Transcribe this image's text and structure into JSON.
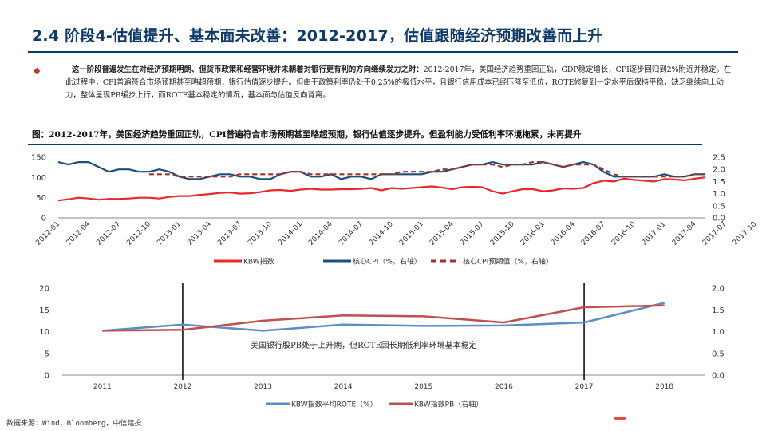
{
  "header": {
    "title": "2.4 阶段4-估值提升、基本面未改善：2012-2017，估值跟随经济预期改善而上升"
  },
  "bullet": {
    "lead": "这一阶段普遍发生在对经济预期明朗、但货币政策和经营环境并未朝着对银行更有利的方向继续发力之时：",
    "body": "2012-2017年，美国经济趋势重回正轨，GDP稳定增长，CPI逐步回归到2%附近并稳定。在此过程中，CPI普遍符合市场预期甚至略超预期，银行估值逐步提升。但由于政策利率仍处于0.25%的极低水平，且银行信用成本已经压降至低位，ROTE修复到一定水平后保持平稳，缺乏继续向上动力，整体呈现PB缓步上行，而ROTE基本稳定的情况，基本面与估值反向背离。"
  },
  "figure": {
    "caption": "图：2012-2017年，美国经济趋势重回正轨，CPI普遍符合市场预期甚至略超预期，银行估值逐步提升。但盈利能力受低利率环境拖累，未再提升"
  },
  "colors": {
    "kbw": "#e8282b",
    "cpi": "#1f4e79",
    "cpi_expect": "#a0322c",
    "rote": "#5b8dc7",
    "pb": "#c0504d"
  },
  "chart_data": [
    {
      "type": "line",
      "ylim_left": [
        0,
        150
      ],
      "yticks_left": [
        "0",
        "50",
        "100",
        "150"
      ],
      "ylim_right": [
        0,
        2.5
      ],
      "yticks_right": [
        "0.0",
        "0.5",
        "1.0",
        "1.5",
        "2.0",
        "2.5"
      ],
      "x_tick_labels": [
        "2012-01",
        "2012-04",
        "2012-07",
        "2012-10",
        "2013-01",
        "2013-04",
        "2013-07",
        "2013-10",
        "2014-01",
        "2014-04",
        "2014-07",
        "2014-10",
        "2015-01",
        "2015-04",
        "2015-07",
        "2015-10",
        "2016-01",
        "2016-04",
        "2016-07",
        "2016-10",
        "2017-01",
        "2017-04",
        "2017-07",
        "2017-10"
      ],
      "series": [
        {
          "name": "KBW指数",
          "axis": "left",
          "style": "solid",
          "values": [
            43,
            46,
            50,
            48,
            45,
            47,
            47,
            48,
            50,
            50,
            48,
            52,
            54,
            54,
            57,
            59,
            62,
            63,
            60,
            61,
            64,
            68,
            69,
            67,
            70,
            72,
            70,
            70,
            71,
            71,
            72,
            74,
            68,
            74,
            72,
            74,
            76,
            78,
            75,
            71,
            76,
            77,
            76,
            66,
            60,
            66,
            71,
            71,
            66,
            68,
            73,
            72,
            74,
            86,
            92,
            90,
            97,
            94,
            92,
            90,
            96,
            95,
            93,
            97,
            100
          ]
        },
        {
          "name": "核心CPI（%，右轴）",
          "axis": "right",
          "style": "solid",
          "values": [
            2.3,
            2.2,
            2.3,
            2.3,
            2.1,
            1.9,
            2.0,
            2.0,
            1.9,
            1.9,
            2.0,
            1.9,
            1.7,
            1.6,
            1.6,
            1.7,
            1.8,
            1.8,
            1.7,
            1.7,
            1.6,
            1.6,
            1.8,
            1.9,
            1.9,
            1.7,
            1.7,
            1.8,
            1.6,
            1.7,
            1.7,
            1.6,
            1.8,
            1.8,
            1.8,
            1.8,
            1.8,
            1.9,
            1.9,
            2.0,
            2.1,
            2.2,
            2.2,
            2.3,
            2.2,
            2.2,
            2.2,
            2.2,
            2.3,
            2.2,
            2.1,
            2.2,
            2.3,
            2.2,
            1.9,
            1.7,
            1.7,
            1.7,
            1.7,
            1.7,
            1.8,
            1.7,
            1.7,
            1.8,
            1.8
          ]
        },
        {
          "name": "核心CPI预期值（%，右轴）",
          "axis": "right",
          "style": "dashed",
          "values": [
            null,
            null,
            null,
            null,
            null,
            null,
            null,
            null,
            null,
            1.8,
            1.8,
            1.8,
            1.7,
            1.7,
            1.7,
            1.7,
            1.7,
            1.7,
            1.8,
            1.8,
            1.8,
            1.8,
            1.8,
            1.9,
            1.9,
            1.8,
            1.8,
            1.8,
            1.8,
            1.8,
            1.8,
            1.8,
            1.8,
            1.8,
            1.9,
            1.9,
            1.9,
            1.9,
            2.0,
            2.0,
            2.1,
            2.2,
            2.2,
            2.2,
            2.1,
            2.2,
            2.2,
            2.3,
            2.3,
            2.2,
            2.1,
            2.2,
            2.2,
            2.2,
            2.0,
            1.8,
            1.7,
            1.7,
            1.7,
            1.7,
            1.7,
            1.7,
            1.7,
            1.8,
            1.8
          ]
        }
      ]
    },
    {
      "type": "line",
      "categories": [
        "2011",
        "2012",
        "2013",
        "2014",
        "2015",
        "2016",
        "2017",
        "2018"
      ],
      "ylim_left": [
        0,
        20
      ],
      "yticks_left": [
        "0",
        "5",
        "10",
        "15",
        "20"
      ],
      "ylim_right": [
        0,
        2.0
      ],
      "yticks_right": [
        "0.0",
        "0.5",
        "1.0",
        "1.5",
        "2.0"
      ],
      "series": [
        {
          "name": "KBW指数平均ROTE（%）",
          "axis": "left",
          "values": [
            10.2,
            11.6,
            10.2,
            11.6,
            11.3,
            11.4,
            12.1,
            16.6
          ]
        },
        {
          "name": "KBW指数PB（右轴）",
          "axis": "right",
          "values": [
            1.02,
            1.04,
            1.25,
            1.37,
            1.35,
            1.21,
            1.56,
            1.6
          ]
        }
      ],
      "vlines_at": [
        "2012",
        "2017"
      ],
      "annotation": "美国银行股PB处于上升期，但ROTE因长期低利率环境基本稳定"
    }
  ],
  "footer": {
    "source": "数据来源：Wind，Bloomberg，中信建投"
  }
}
